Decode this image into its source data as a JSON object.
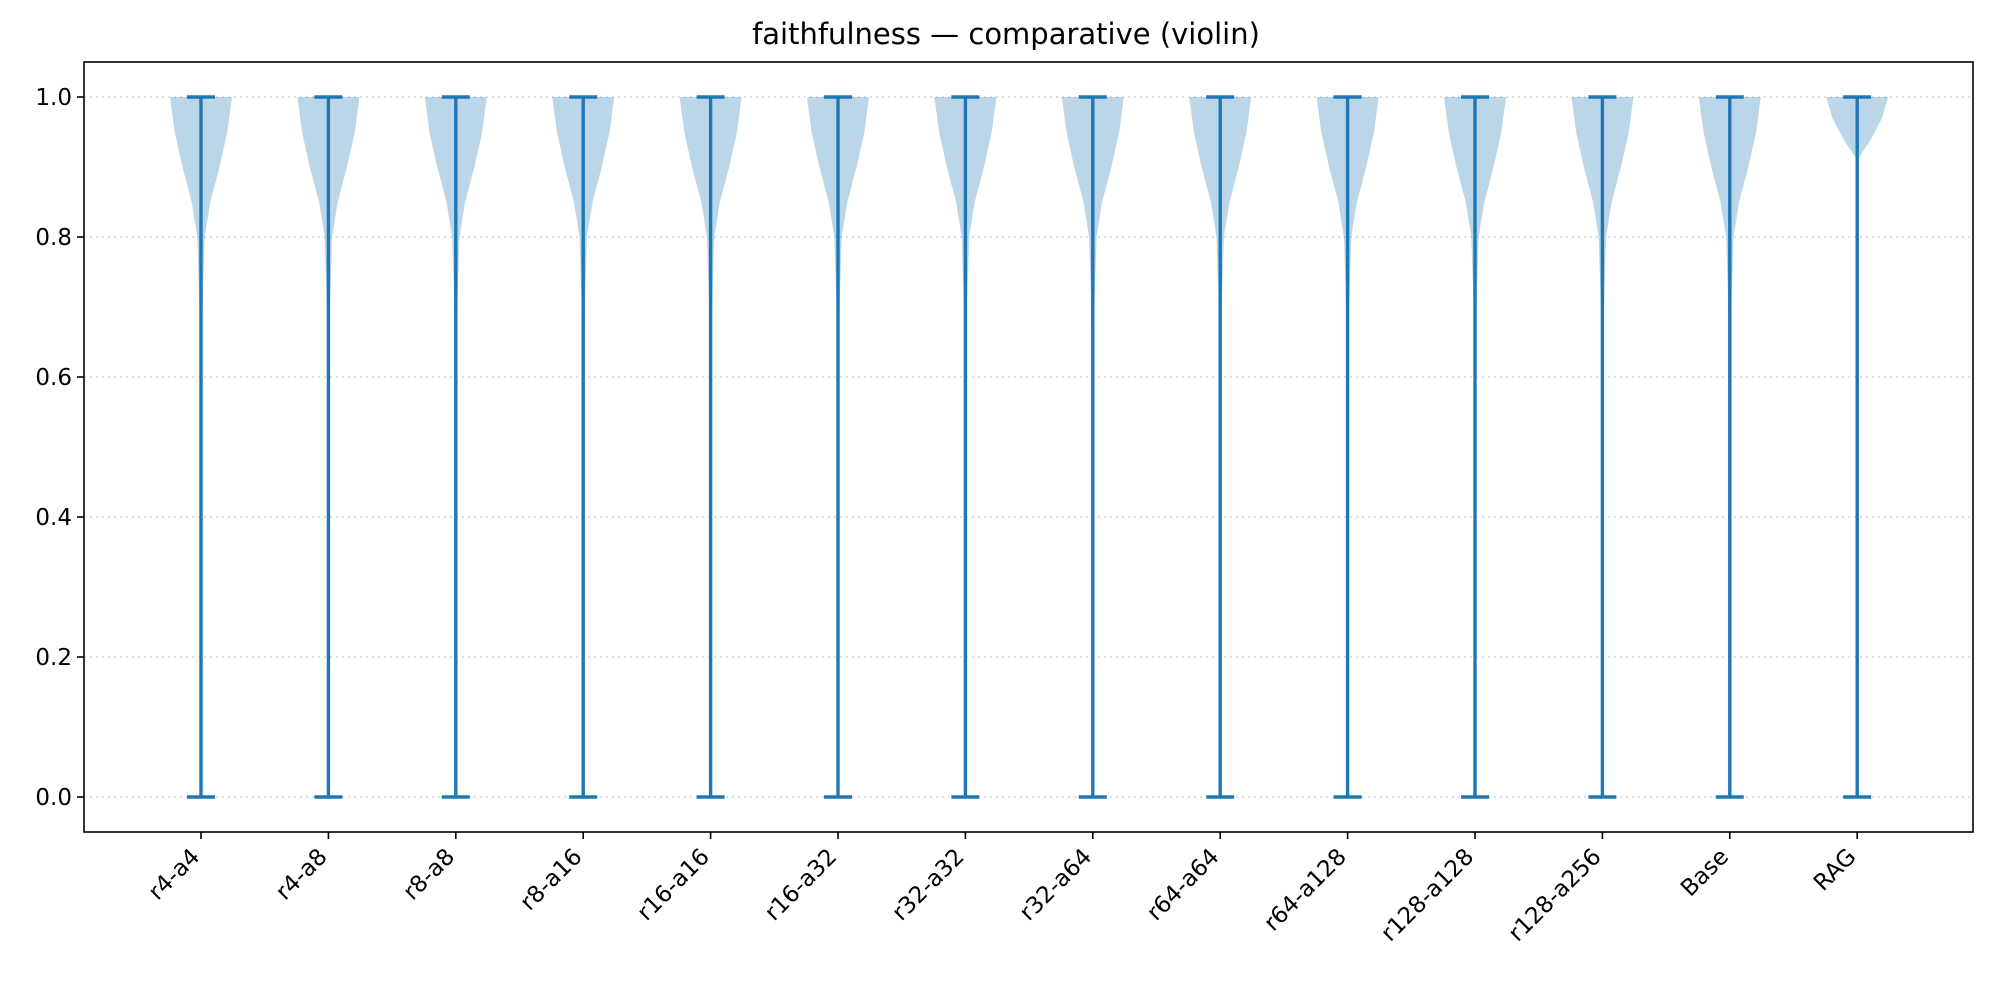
{
  "chart_data": {
    "type": "violin",
    "title": "faithfulness — comparative (violin)",
    "xlabel": "",
    "ylabel": "",
    "ylim": [
      -0.05,
      1.05
    ],
    "yticks": [
      "0.0",
      "0.2",
      "0.4",
      "0.6",
      "0.8",
      "1.0"
    ],
    "grid": "y-dotted",
    "categories": [
      "r4-a4",
      "r4-a8",
      "r8-a8",
      "r8-a16",
      "r16-a16",
      "r16-a32",
      "r32-a32",
      "r32-a64",
      "r64-a64",
      "r64-a128",
      "r128-a128",
      "r128-a256",
      "Base",
      "RAG"
    ],
    "min": [
      0.0,
      0.0,
      0.0,
      0.0,
      0.0,
      0.0,
      0.0,
      0.0,
      0.0,
      0.0,
      0.0,
      0.0,
      0.0,
      0.0
    ],
    "max": [
      1.0,
      1.0,
      1.0,
      1.0,
      1.0,
      1.0,
      1.0,
      1.0,
      1.0,
      1.0,
      1.0,
      1.0,
      1.0,
      1.0
    ],
    "color": "#1f77b4",
    "density_profile": [
      [
        1.0,
        1.0
      ],
      [
        0.95,
        0.85
      ],
      [
        0.9,
        0.6
      ],
      [
        0.85,
        0.3
      ],
      [
        0.8,
        0.12
      ],
      [
        0.7,
        0.05
      ],
      [
        0.6,
        0.03
      ],
      [
        0.5,
        0.015
      ],
      [
        0.4,
        0.0
      ]
    ],
    "density_profile_rag": [
      [
        1.0,
        1.0
      ],
      [
        0.97,
        0.8
      ],
      [
        0.94,
        0.45
      ],
      [
        0.91,
        0.0
      ]
    ]
  }
}
